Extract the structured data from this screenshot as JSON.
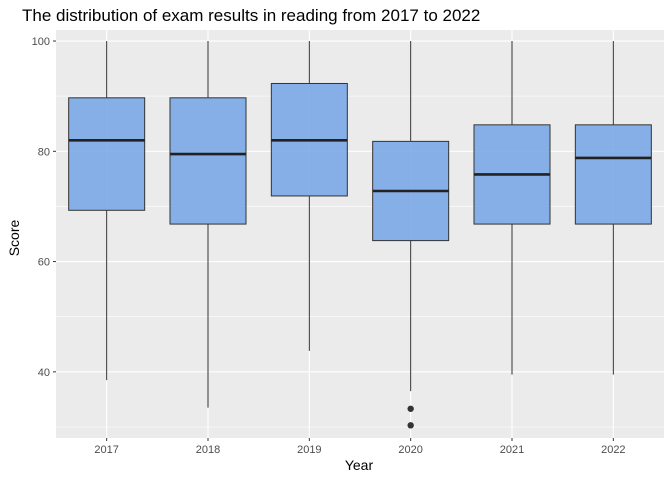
{
  "chart_data": {
    "type": "boxplot",
    "title": "The distribution of exam results in reading from 2017 to 2022",
    "xlabel": "Year",
    "ylabel": "Score",
    "ylim": [
      28,
      102
    ],
    "yticks": [
      40,
      60,
      80,
      100
    ],
    "grid": true,
    "categories": [
      "2017",
      "2018",
      "2019",
      "2020",
      "2021",
      "2022"
    ],
    "boxes": [
      {
        "category": "2017",
        "min": 38.5,
        "q1": 69.3,
        "median": 82.0,
        "q3": 89.7,
        "max": 100,
        "outliers": []
      },
      {
        "category": "2018",
        "min": 33.5,
        "q1": 66.8,
        "median": 79.5,
        "q3": 89.7,
        "max": 100,
        "outliers": []
      },
      {
        "category": "2019",
        "min": 43.8,
        "q1": 71.9,
        "median": 82.0,
        "q3": 92.3,
        "max": 100,
        "outliers": []
      },
      {
        "category": "2020",
        "min": 36.5,
        "q1": 63.8,
        "median": 72.8,
        "q3": 81.8,
        "max": 100,
        "outliers": [
          33.3,
          30.3
        ]
      },
      {
        "category": "2021",
        "min": 39.5,
        "q1": 66.8,
        "median": 75.8,
        "q3": 84.8,
        "max": 100,
        "outliers": []
      },
      {
        "category": "2022",
        "min": 39.5,
        "q1": 66.8,
        "median": 78.8,
        "q3": 84.8,
        "max": 100,
        "outliers": []
      }
    ],
    "colors": {
      "panel_bg": "#ebebeb",
      "grid": "#ffffff",
      "box_fill": "#7aa9e6",
      "box_stroke": "#333333",
      "median": "#222222",
      "outlier": "#333333"
    }
  }
}
